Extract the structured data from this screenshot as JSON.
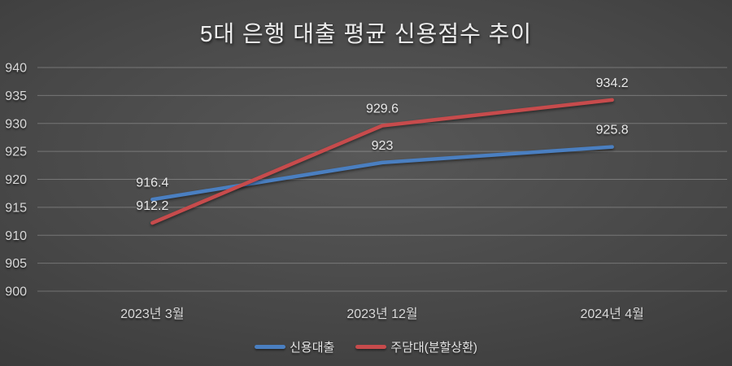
{
  "chart_data": {
    "type": "line",
    "title": "5대 은행 대출 평균 신용점수 추이",
    "categories": [
      "2023년 3월",
      "2023년 12월",
      "2024년 4월"
    ],
    "series": [
      {
        "name": "신용대출",
        "color": "#4a7fc1",
        "values": [
          916.4,
          923,
          925.8
        ],
        "labels": [
          "916.4",
          "923",
          "925.8"
        ]
      },
      {
        "name": "주담대(분할상환)",
        "color": "#c74b4c",
        "values": [
          912.2,
          929.6,
          934.2
        ],
        "labels": [
          "912.2",
          "929.6",
          "934.2"
        ]
      }
    ],
    "y_axis": {
      "min": 900,
      "max": 940,
      "step": 5,
      "tick_labels": [
        "900",
        "905",
        "910",
        "915",
        "920",
        "925",
        "930",
        "935",
        "940"
      ]
    },
    "grid": true,
    "legend_position": "bottom",
    "theme": {
      "background_center": "#585858",
      "background_edge": "#242424",
      "gridline": "rgba(255,255,255,0.25)",
      "text": "#e9e9e9"
    }
  }
}
